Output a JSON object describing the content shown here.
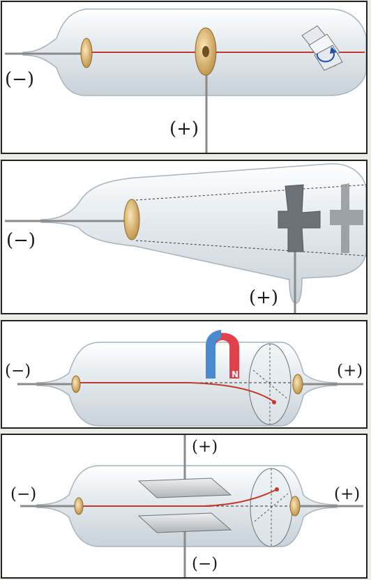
{
  "colors": {
    "glass": "#dde4ea",
    "glass_edge": "#a9b3bc",
    "ray": "#c0392b",
    "electrode": "#d9b77a",
    "wire": "#8a8a8a",
    "plate": "#cfd3d6",
    "cross": "#6b7278",
    "magnet_red": "#e2404a",
    "magnet_blue": "#4a8bd0",
    "background": "#ecebe6"
  },
  "panels": [
    {
      "id": "paddle-wheel-tube",
      "labels": {
        "cathode": "(−)",
        "anode": "(+)"
      }
    },
    {
      "id": "maltese-cross-tube",
      "labels": {
        "cathode": "(−)",
        "anode": "(+)"
      }
    },
    {
      "id": "magnet-deflection-tube",
      "labels": {
        "cathode": "(−)",
        "anode": "(+)",
        "magnet_pole": "N"
      }
    },
    {
      "id": "electric-field-deflection-tube",
      "labels": {
        "cathode": "(−)",
        "anode": "(+)",
        "top_plate": "(+)",
        "bottom_plate": "(−)"
      }
    }
  ]
}
